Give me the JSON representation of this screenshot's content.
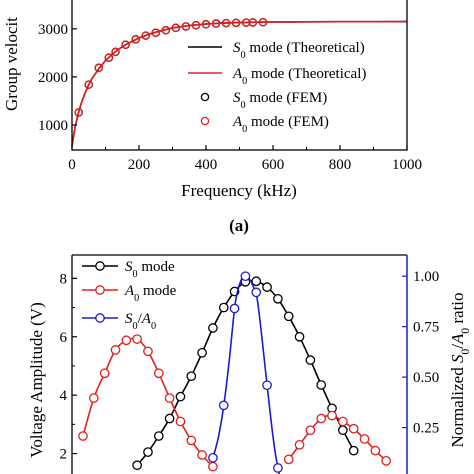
{
  "chart_data": [
    {
      "type": "line",
      "title": "",
      "subtitle": "",
      "xlabel": "Frequency (kHz)",
      "ylabel": "Group velocit",
      "xlim": [
        0,
        1000
      ],
      "ylim": [
        480,
        3600
      ],
      "xticks": [
        0,
        200,
        400,
        600,
        800,
        1000
      ],
      "yticks": [
        1000,
        2000,
        3000
      ],
      "grid": false,
      "legend_position": "bottom-right",
      "panel_label": "(a)",
      "series": [
        {
          "name": "S₀ mode (Theoretical)",
          "legend_main": "S",
          "legend_sub": "0",
          "legend_rest": " mode (Theoretical)",
          "style": "line",
          "color": "#000000",
          "x": [
            0,
            5,
            10,
            20,
            30,
            40,
            50,
            60,
            80,
            100,
            120,
            140,
            160,
            180,
            200,
            230,
            260,
            300,
            350,
            400,
            450,
            500,
            550,
            600,
            650,
            700,
            800,
            900,
            1000
          ],
          "y": [
            560,
            790,
            980,
            1270,
            1500,
            1680,
            1840,
            1970,
            2170,
            2340,
            2470,
            2580,
            2670,
            2740,
            2810,
            2890,
            2950,
            3020,
            3070,
            3100,
            3120,
            3130,
            3138,
            3142,
            3145,
            3146,
            3148,
            3149,
            3150
          ]
        },
        {
          "name": "A₀ mode (Theoretical)",
          "legend_main": "A",
          "legend_sub": "0",
          "legend_rest": " mode (Theoretical)",
          "style": "line",
          "color": "#e02020",
          "x": [
            0,
            5,
            10,
            20,
            30,
            40,
            50,
            60,
            80,
            100,
            120,
            140,
            160,
            180,
            200,
            230,
            260,
            300,
            350,
            400,
            450,
            500,
            550,
            600,
            650,
            700,
            800,
            900,
            1000
          ],
          "y": [
            560,
            790,
            980,
            1270,
            1500,
            1680,
            1840,
            1970,
            2170,
            2340,
            2470,
            2580,
            2670,
            2740,
            2810,
            2890,
            2950,
            3020,
            3070,
            3100,
            3120,
            3130,
            3138,
            3142,
            3145,
            3146,
            3148,
            3149,
            3150
          ]
        },
        {
          "name": "S₀ mode (FEM)",
          "legend_main": "S",
          "legend_sub": "0",
          "legend_rest": " mode (FEM)",
          "style": "marker",
          "color": "#000000",
          "x": [
            20,
            50,
            80,
            110,
            130,
            160,
            190,
            220,
            250,
            280,
            310,
            340,
            370,
            400,
            430,
            460,
            490,
            520,
            540,
            570
          ],
          "y": [
            1260,
            1840,
            2190,
            2400,
            2520,
            2670,
            2780,
            2860,
            2920,
            2970,
            3020,
            3050,
            3075,
            3095,
            3110,
            3120,
            3125,
            3130,
            3133,
            3137
          ]
        },
        {
          "name": "A₀ mode (FEM)",
          "legend_main": "A",
          "legend_sub": "0",
          "legend_rest": " mode (FEM)",
          "style": "marker",
          "color": "#e02020",
          "x": [
            20,
            50,
            80,
            110,
            130,
            160,
            190,
            220,
            250,
            280,
            310,
            340,
            370,
            400,
            430,
            460,
            490,
            520,
            540,
            570
          ],
          "y": [
            1260,
            1840,
            2190,
            2400,
            2520,
            2670,
            2780,
            2860,
            2920,
            2970,
            3020,
            3050,
            3075,
            3095,
            3110,
            3120,
            3125,
            3130,
            3133,
            3137
          ]
        }
      ]
    },
    {
      "type": "line",
      "title": "",
      "subtitle": "",
      "xlabel": "",
      "ylabel": "Voltage Amplitude (V)",
      "y2label_parts": [
        "Normalized ",
        "S",
        "0",
        "/",
        "A",
        "0",
        " ratio"
      ],
      "ylim": [
        1.3,
        8.8
      ],
      "y2lim": [
        0.02,
        1.105
      ],
      "yticks": [
        2,
        4,
        6,
        8
      ],
      "y2ticks": [
        0.25,
        0.5,
        0.75,
        1.0
      ],
      "y2ticklabels": [
        "0.25",
        "0.50",
        "0.75",
        "1.00"
      ],
      "xlim": [
        0,
        29
      ],
      "grid": false,
      "legend_position": "top-left",
      "series": [
        {
          "name": "S₀ mode",
          "legend_main": "S",
          "legend_sub": "0",
          "legend_rest": " mode",
          "axis": "left",
          "color": "#000000",
          "x": [
            5,
            6,
            7,
            8,
            9,
            10,
            11,
            12,
            13,
            14,
            15,
            16,
            17,
            18,
            19,
            20,
            21,
            22,
            23,
            24,
            25
          ],
          "y": [
            1.6,
            2.05,
            2.6,
            3.2,
            3.95,
            4.65,
            5.45,
            6.3,
            7.0,
            7.55,
            7.88,
            7.9,
            7.7,
            7.3,
            6.7,
            6.0,
            5.2,
            4.35,
            3.55,
            2.8,
            2.1
          ]
        },
        {
          "name": "A₀ mode",
          "legend_main": "A",
          "legend_sub": "0",
          "legend_rest": " mode",
          "axis": "left",
          "color": "#e02020",
          "x": [
            0,
            1,
            2,
            3,
            4,
            5,
            6,
            7,
            8,
            9,
            10,
            11,
            12,
            19,
            20,
            21,
            22,
            23,
            24,
            25,
            26,
            27,
            28
          ],
          "y": [
            2.6,
            3.9,
            4.75,
            5.55,
            5.88,
            5.92,
            5.5,
            4.75,
            3.9,
            3.1,
            2.45,
            1.95,
            1.55,
            1.8,
            2.3,
            2.8,
            3.2,
            3.3,
            3.1,
            2.85,
            2.5,
            2.1,
            1.75
          ]
        },
        {
          "name": "S₀/A₀",
          "legend_main": "S",
          "legend_sub": "0",
          "legend_rest": "/",
          "legend_main2": "A",
          "legend_sub2": "0",
          "axis": "right",
          "color": "#1c1cc8",
          "x": [
            12,
            13,
            14,
            15,
            16,
            17,
            18
          ],
          "y": [
            0.1,
            0.36,
            0.84,
            1.0,
            0.92,
            0.46,
            0.05
          ]
        }
      ],
      "s0a0_curve": {
        "x": [
          12,
          12.5,
          13,
          13.5,
          14,
          14.3,
          14.6,
          14.8,
          15,
          15.2,
          15.5,
          15.8,
          16,
          16.3,
          16.6,
          17,
          17.4,
          17.8,
          18.2
        ],
        "y": [
          0.1,
          0.2,
          0.36,
          0.58,
          0.84,
          0.93,
          0.98,
          0.998,
          1.0,
          0.995,
          0.975,
          0.94,
          0.92,
          0.8,
          0.66,
          0.46,
          0.27,
          0.11,
          0.0
        ]
      }
    }
  ]
}
